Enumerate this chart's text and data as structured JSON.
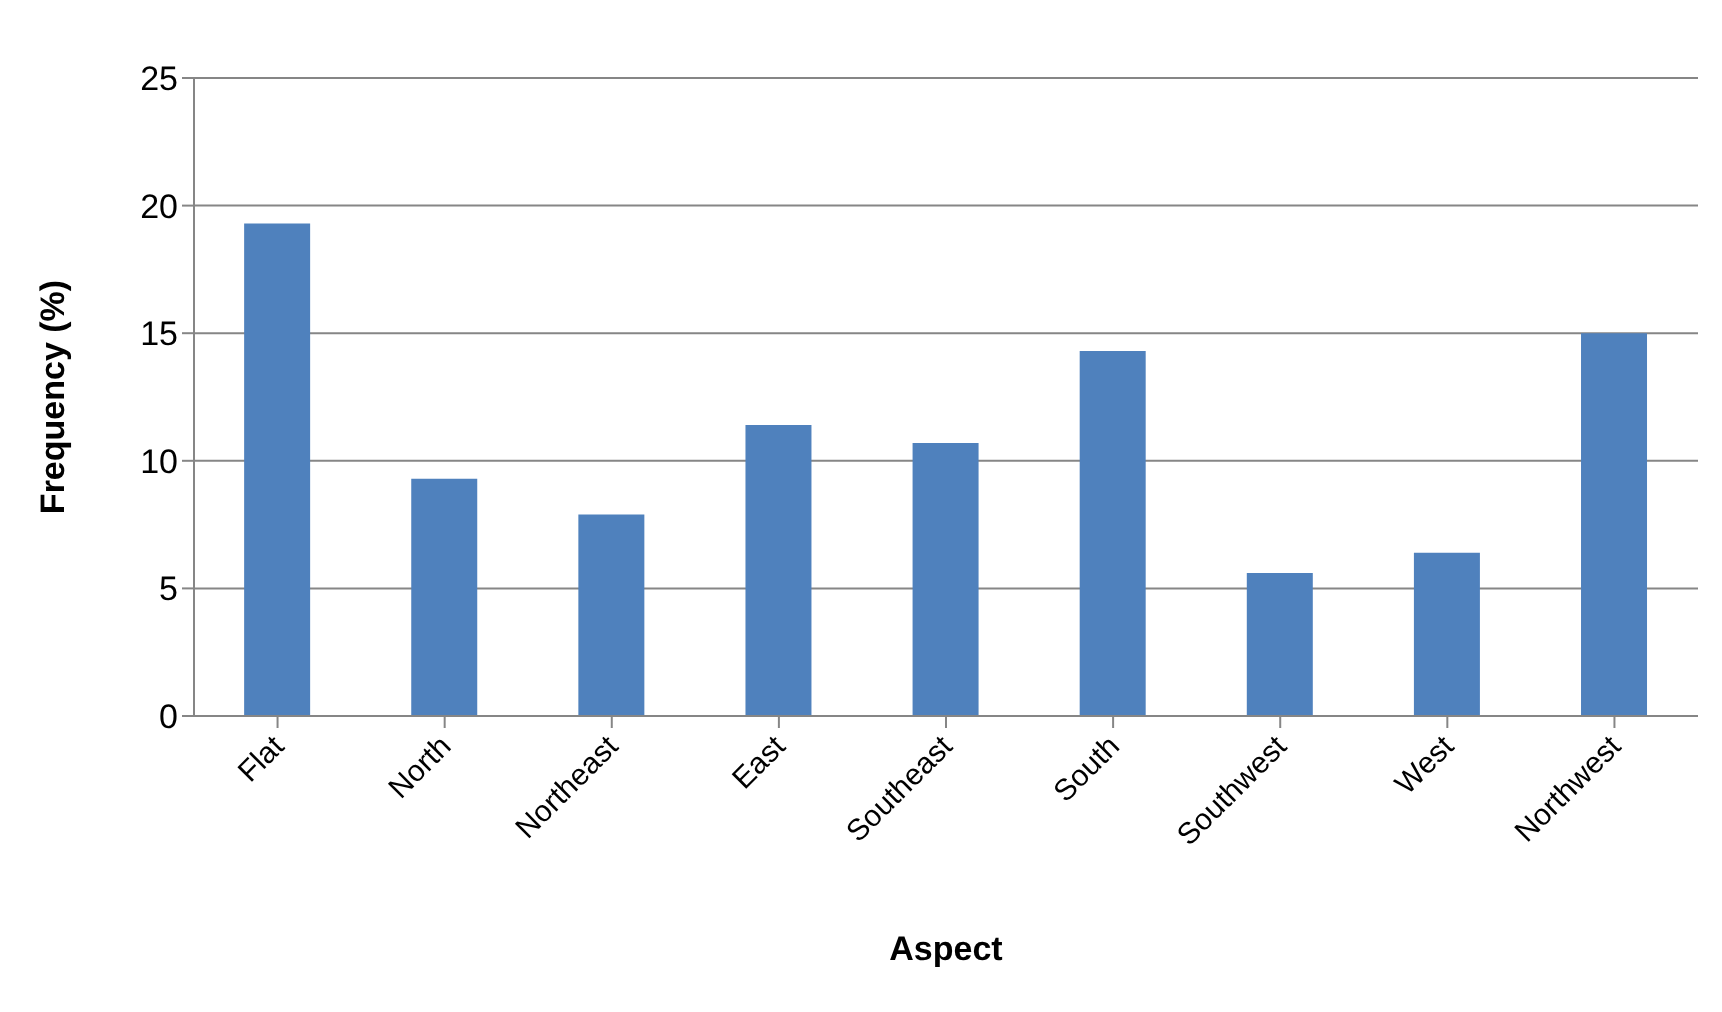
{
  "chart_data": {
    "type": "bar",
    "xlabel": "Aspect",
    "ylabel": "Frequency (%)",
    "categories": [
      "Flat",
      "North",
      "Northeast",
      "East",
      "Southeast",
      "South",
      "Southwest",
      "West",
      "Northwest"
    ],
    "values": [
      19.3,
      9.3,
      7.9,
      11.4,
      10.7,
      14.3,
      5.6,
      6.4,
      15.0
    ],
    "color": "#4f81bd",
    "ylim": [
      0,
      25
    ],
    "yticks": [
      0,
      5,
      10,
      15,
      20,
      25
    ],
    "grid": "y"
  }
}
